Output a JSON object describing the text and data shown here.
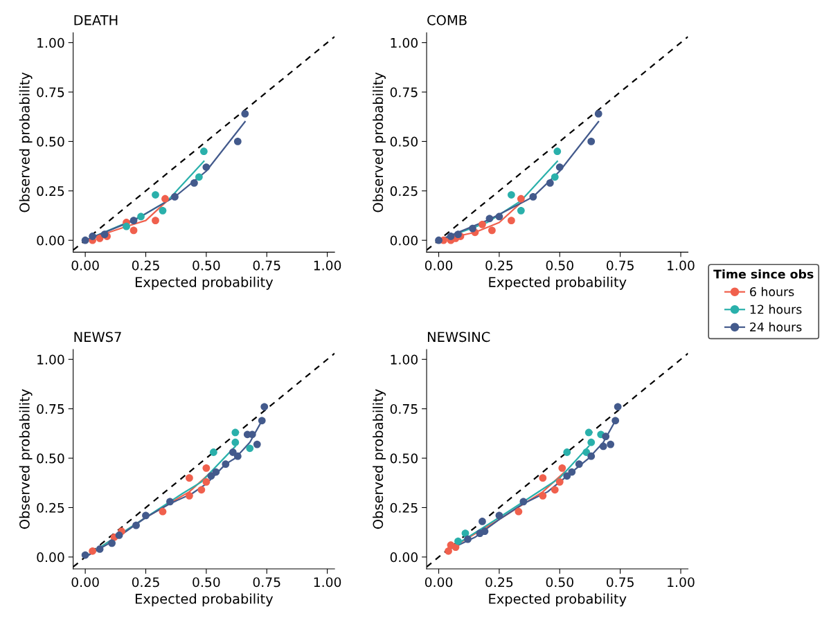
{
  "chart_data": [
    {
      "type": "scatter",
      "title": "DEATH",
      "xlabel": "Expected probability",
      "ylabel": "Observed probability",
      "xlim": [
        -0.05,
        1.03
      ],
      "ylim": [
        -0.06,
        1.05
      ],
      "xticks": [
        {
          "value": 0,
          "label": "0.00"
        },
        {
          "value": 0.25,
          "label": "0.25"
        },
        {
          "value": 0.5,
          "label": "0.50"
        },
        {
          "value": 0.75,
          "label": "0.75"
        },
        {
          "value": 1,
          "label": "1.00"
        }
      ],
      "yticks": [
        {
          "value": 0,
          "label": "0.00"
        },
        {
          "value": 0.25,
          "label": "0.25"
        },
        {
          "value": 0.5,
          "label": "0.50"
        },
        {
          "value": 0.75,
          "label": "0.75"
        },
        {
          "value": 1,
          "label": "1.00"
        }
      ],
      "marker": "circle",
      "legend": "right",
      "legend_title": "Time since obs",
      "series": [
        {
          "type": "line",
          "marker": "none",
          "color": "#000000",
          "line_style": "dashed",
          "x": [
            -0.05,
            1.03
          ],
          "values": [
            -0.05,
            1.03
          ]
        },
        {
          "type": "line",
          "marker": "none",
          "color": "#f0604d",
          "x": [
            0.0,
            0.17,
            0.25,
            0.33
          ],
          "values": [
            0.0,
            0.07,
            0.1,
            0.19
          ]
        },
        {
          "type": "line",
          "marker": "none",
          "color": "#2ab0ab",
          "x": [
            0.02,
            0.23,
            0.34,
            0.49
          ],
          "values": [
            0.01,
            0.12,
            0.2,
            0.4
          ]
        },
        {
          "type": "line",
          "marker": "none",
          "color": "#435a8c",
          "x": [
            0.0,
            0.08,
            0.2,
            0.37,
            0.5,
            0.66
          ],
          "values": [
            0.0,
            0.04,
            0.1,
            0.22,
            0.35,
            0.6
          ]
        },
        {
          "name": "6 hours",
          "color": "#f0604d",
          "x": [
            0.03,
            0.06,
            0.09,
            0.17,
            0.2,
            0.29,
            0.33
          ],
          "values": [
            0.0,
            0.01,
            0.02,
            0.09,
            0.05,
            0.1,
            0.21
          ]
        },
        {
          "name": "12 hours",
          "color": "#2ab0ab",
          "x": [
            0.17,
            0.23,
            0.29,
            0.32,
            0.47,
            0.49
          ],
          "values": [
            0.07,
            0.12,
            0.23,
            0.15,
            0.32,
            0.45
          ]
        },
        {
          "name": "24 hours",
          "color": "#435a8c",
          "x": [
            0.0,
            0.03,
            0.08,
            0.2,
            0.37,
            0.45,
            0.5,
            0.63,
            0.66
          ],
          "values": [
            0.0,
            0.02,
            0.03,
            0.1,
            0.22,
            0.29,
            0.37,
            0.5,
            0.64
          ]
        }
      ]
    },
    {
      "type": "scatter",
      "title": "COMB",
      "xlabel": "Expected probability",
      "ylabel": "Observed probability",
      "xlim": [
        -0.05,
        1.03
      ],
      "ylim": [
        -0.06,
        1.05
      ],
      "xticks": [
        {
          "value": 0,
          "label": "0.00"
        },
        {
          "value": 0.25,
          "label": "0.25"
        },
        {
          "value": 0.5,
          "label": "0.50"
        },
        {
          "value": 0.75,
          "label": "0.75"
        },
        {
          "value": 1,
          "label": "1.00"
        }
      ],
      "yticks": [
        {
          "value": 0,
          "label": "0.00"
        },
        {
          "value": 0.25,
          "label": "0.25"
        },
        {
          "value": 0.5,
          "label": "0.50"
        },
        {
          "value": 0.75,
          "label": "0.75"
        },
        {
          "value": 1,
          "label": "1.00"
        }
      ],
      "marker": "circle",
      "series": [
        {
          "type": "line",
          "marker": "none",
          "color": "#000000",
          "line_style": "dashed",
          "x": [
            -0.05,
            1.03
          ],
          "values": [
            -0.05,
            1.03
          ]
        },
        {
          "type": "line",
          "marker": "none",
          "color": "#f0604d",
          "x": [
            0.0,
            0.15,
            0.25,
            0.34
          ],
          "values": [
            0.0,
            0.04,
            0.09,
            0.19
          ]
        },
        {
          "type": "line",
          "marker": "none",
          "color": "#2ab0ab",
          "x": [
            0.0,
            0.2,
            0.34,
            0.49
          ],
          "values": [
            0.0,
            0.09,
            0.2,
            0.4
          ]
        },
        {
          "type": "line",
          "marker": "none",
          "color": "#435a8c",
          "x": [
            0.0,
            0.08,
            0.2,
            0.39,
            0.5,
            0.66
          ],
          "values": [
            0.0,
            0.04,
            0.1,
            0.22,
            0.35,
            0.6
          ]
        },
        {
          "color": "#f0604d",
          "x": [
            0.02,
            0.05,
            0.07,
            0.09,
            0.15,
            0.18,
            0.22,
            0.3,
            0.34
          ],
          "values": [
            0.0,
            0.0,
            0.01,
            0.02,
            0.04,
            0.08,
            0.05,
            0.1,
            0.21
          ]
        },
        {
          "color": "#2ab0ab",
          "x": [
            0.3,
            0.34,
            0.48,
            0.49
          ],
          "values": [
            0.23,
            0.15,
            0.32,
            0.45
          ]
        },
        {
          "color": "#435a8c",
          "x": [
            0.0,
            0.05,
            0.08,
            0.14,
            0.21,
            0.25,
            0.39,
            0.46,
            0.5,
            0.63,
            0.66
          ],
          "values": [
            0.0,
            0.02,
            0.03,
            0.06,
            0.11,
            0.12,
            0.22,
            0.29,
            0.37,
            0.5,
            0.64
          ]
        }
      ]
    },
    {
      "type": "scatter",
      "title": "NEWS7",
      "xlabel": "Expected probability",
      "ylabel": "Observed probability",
      "xlim": [
        -0.05,
        1.03
      ],
      "ylim": [
        -0.06,
        1.05
      ],
      "xticks": [
        {
          "value": 0,
          "label": "0.00"
        },
        {
          "value": 0.25,
          "label": "0.25"
        },
        {
          "value": 0.5,
          "label": "0.50"
        },
        {
          "value": 0.75,
          "label": "0.75"
        },
        {
          "value": 1,
          "label": "1.00"
        }
      ],
      "yticks": [
        {
          "value": 0,
          "label": "0.00"
        },
        {
          "value": 0.25,
          "label": "0.25"
        },
        {
          "value": 0.5,
          "label": "0.50"
        },
        {
          "value": 0.75,
          "label": "0.75"
        },
        {
          "value": 1,
          "label": "1.00"
        }
      ],
      "marker": "circle",
      "series": [
        {
          "type": "line",
          "marker": "none",
          "color": "#000000",
          "line_style": "dashed",
          "x": [
            -0.05,
            1.03
          ],
          "values": [
            -0.05,
            1.03
          ]
        },
        {
          "type": "line",
          "marker": "none",
          "color": "#f0604d",
          "x": [
            0.0,
            0.25,
            0.43,
            0.52
          ],
          "values": [
            0.0,
            0.2,
            0.33,
            0.43
          ]
        },
        {
          "type": "line",
          "marker": "none",
          "color": "#2ab0ab",
          "x": [
            0.0,
            0.25,
            0.4,
            0.48,
            0.62
          ],
          "values": [
            0.0,
            0.2,
            0.32,
            0.38,
            0.56
          ]
        },
        {
          "type": "line",
          "marker": "none",
          "color": "#435a8c",
          "x": [
            0.0,
            0.1,
            0.25,
            0.35,
            0.44,
            0.5,
            0.58,
            0.62,
            0.68,
            0.73
          ],
          "values": [
            0.0,
            0.07,
            0.2,
            0.27,
            0.32,
            0.37,
            0.47,
            0.5,
            0.58,
            0.69
          ]
        },
        {
          "color": "#f0604d",
          "x": [
            0.03,
            0.12,
            0.15,
            0.32,
            0.43,
            0.43,
            0.48,
            0.5,
            0.5
          ],
          "values": [
            0.03,
            0.1,
            0.13,
            0.23,
            0.4,
            0.31,
            0.34,
            0.38,
            0.45
          ]
        },
        {
          "color": "#2ab0ab",
          "x": [
            0.53,
            0.62,
            0.62,
            0.68
          ],
          "values": [
            0.53,
            0.58,
            0.63,
            0.55
          ]
        },
        {
          "color": "#435a8c",
          "x": [
            0.0,
            0.06,
            0.11,
            0.14,
            0.21,
            0.25,
            0.35,
            0.52,
            0.54,
            0.58,
            0.61,
            0.63,
            0.67,
            0.69,
            0.71,
            0.73,
            0.74
          ],
          "values": [
            0.01,
            0.04,
            0.07,
            0.11,
            0.16,
            0.21,
            0.28,
            0.41,
            0.43,
            0.47,
            0.53,
            0.51,
            0.62,
            0.62,
            0.57,
            0.69,
            0.76
          ]
        }
      ]
    },
    {
      "type": "scatter",
      "title": "NEWSINC",
      "xlabel": "Expected probability",
      "ylabel": "Observed probability",
      "xlim": [
        -0.05,
        1.03
      ],
      "ylim": [
        -0.06,
        1.05
      ],
      "xticks": [
        {
          "value": 0,
          "label": "0.00"
        },
        {
          "value": 0.25,
          "label": "0.25"
        },
        {
          "value": 0.5,
          "label": "0.50"
        },
        {
          "value": 0.75,
          "label": "0.75"
        },
        {
          "value": 1,
          "label": "1.00"
        }
      ],
      "yticks": [
        {
          "value": 0,
          "label": "0.00"
        },
        {
          "value": 0.25,
          "label": "0.25"
        },
        {
          "value": 0.5,
          "label": "0.50"
        },
        {
          "value": 0.75,
          "label": "0.75"
        },
        {
          "value": 1,
          "label": "1.00"
        }
      ],
      "marker": "circle",
      "series": [
        {
          "type": "line",
          "marker": "none",
          "color": "#000000",
          "line_style": "dashed",
          "x": [
            -0.05,
            1.03
          ],
          "values": [
            -0.05,
            1.03
          ]
        },
        {
          "type": "line",
          "marker": "none",
          "color": "#f0604d",
          "x": [
            0.03,
            0.25,
            0.43,
            0.52
          ],
          "values": [
            0.03,
            0.19,
            0.33,
            0.43
          ]
        },
        {
          "type": "line",
          "marker": "none",
          "color": "#2ab0ab",
          "x": [
            0.03,
            0.25,
            0.4,
            0.5,
            0.62
          ],
          "values": [
            0.03,
            0.2,
            0.32,
            0.4,
            0.56
          ]
        },
        {
          "type": "line",
          "marker": "none",
          "color": "#435a8c",
          "x": [
            0.03,
            0.15,
            0.25,
            0.35,
            0.45,
            0.53,
            0.62,
            0.68,
            0.73
          ],
          "values": [
            0.03,
            0.1,
            0.19,
            0.27,
            0.33,
            0.41,
            0.5,
            0.58,
            0.69
          ]
        },
        {
          "color": "#f0604d",
          "x": [
            0.04,
            0.05,
            0.07,
            0.33,
            0.43,
            0.43,
            0.48,
            0.5,
            0.51
          ],
          "values": [
            0.03,
            0.06,
            0.05,
            0.23,
            0.4,
            0.31,
            0.34,
            0.38,
            0.45
          ]
        },
        {
          "color": "#2ab0ab",
          "x": [
            0.08,
            0.11,
            0.53,
            0.61,
            0.63,
            0.62,
            0.67
          ],
          "values": [
            0.08,
            0.12,
            0.53,
            0.53,
            0.58,
            0.63,
            0.62
          ]
        },
        {
          "color": "#435a8c",
          "x": [
            0.12,
            0.17,
            0.19,
            0.18,
            0.25,
            0.35,
            0.53,
            0.55,
            0.58,
            0.63,
            0.68,
            0.69,
            0.71,
            0.73,
            0.74
          ],
          "values": [
            0.09,
            0.12,
            0.13,
            0.18,
            0.21,
            0.28,
            0.41,
            0.43,
            0.47,
            0.51,
            0.56,
            0.61,
            0.57,
            0.69,
            0.76
          ]
        }
      ]
    }
  ]
}
